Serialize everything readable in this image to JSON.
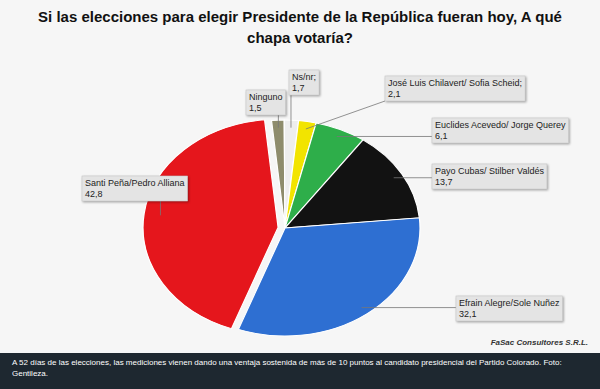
{
  "chart_data": {
    "type": "pie",
    "title": "Si las elecciones para elegir Presidente de la República fueran hoy, A qué chapa votaría?",
    "categories": [
      "Ninguno",
      "Ns/nr;",
      "José Luis Chilavert/ Sofia Scheid;",
      "Euclides Acevedo/ Jorge Querey",
      "Payo Cubas/ Stilber Valdés",
      "Efrain Alegre/Sole Nuñez",
      "Santi Peña/Pedro Alliana"
    ],
    "values": [
      1.5,
      1.7,
      2.1,
      6.1,
      13.7,
      32.1,
      42.8
    ],
    "value_labels": [
      "1,5",
      "1,7",
      "2,1",
      "6,1",
      "13,7",
      "32,1",
      "42,8"
    ],
    "colors": [
      "#8e8c6c",
      "#eeeeee",
      "#f2e400",
      "#2eae4a",
      "#121212",
      "#2e6fd2",
      "#e5161c"
    ],
    "data_labels": true,
    "source": "FaSac Consultores S.R.L.",
    "caption": "A 52 días de las elecciones, las mediciones vienen dando una ventaja sostenida de más de 10 puntos al candidato presidencial del Partido Colorado. Foto: Gentileza."
  }
}
